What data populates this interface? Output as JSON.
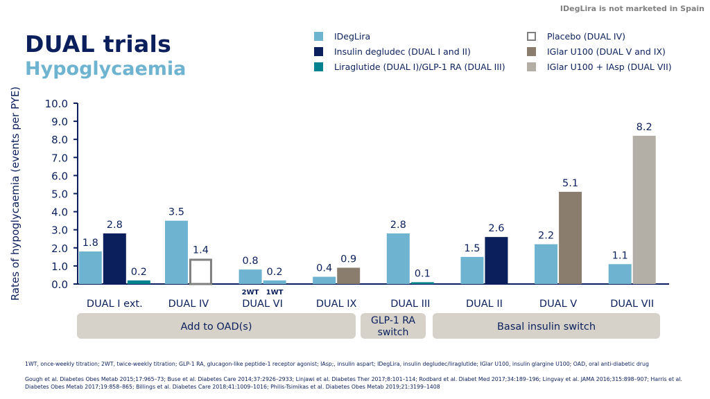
{
  "header": {
    "notice": "IDegLira is not marketed in Spain",
    "title": "DUAL trials",
    "subtitle": "Hypoglycaemia"
  },
  "colors": {
    "ideglira": "#6eb3cf",
    "degludec": "#0a1f5c",
    "liraglutide": "#00838f",
    "placebo": "#ffffff",
    "placebo_border": "#7f7f7f",
    "iglar": "#8b7d6e",
    "iglar_iasp": "#b3aea6",
    "group_bg": "#d6d1c9",
    "text": "#0a1f5c"
  },
  "legend": [
    {
      "label": "IDegLira",
      "color": "#6eb3cf"
    },
    {
      "label": "Insulin degludec (DUAL I and II)",
      "color": "#0a1f5c"
    },
    {
      "label": "Liraglutide (DUAL I)/GLP-1 RA (DUAL III)",
      "color": "#00838f"
    },
    {
      "label": "Placebo (DUAL IV)",
      "color": "#ffffff",
      "border": "#7f7f7f"
    },
    {
      "label": "IGlar U100 (DUAL V and IX)",
      "color": "#8b7d6e"
    },
    {
      "label": "IGlar U100 + IAsp (DUAL VII)",
      "color": "#b3aea6"
    }
  ],
  "chart_data": {
    "type": "bar",
    "ylabel": "Rates of hypoglycaemia (events per PYE)",
    "ylim": [
      0,
      10
    ],
    "yticks": [
      "0.0",
      "1.0",
      "2.0",
      "3.0",
      "4.0",
      "5.0",
      "6.0",
      "7.0",
      "8.0",
      "9.0",
      "10.0"
    ],
    "categories": [
      {
        "name": "DUAL I ext.",
        "bars": [
          {
            "series": "IDegLira",
            "value": 1.8,
            "label": "1.8"
          },
          {
            "series": "Insulin degludec",
            "value": 2.8,
            "label": "2.8"
          },
          {
            "series": "Liraglutide",
            "value": 0.2,
            "label": "0.2"
          }
        ]
      },
      {
        "name": "DUAL IV",
        "bars": [
          {
            "series": "IDegLira",
            "value": 3.5,
            "label": "3.5"
          },
          {
            "series": "Placebo",
            "value": 1.4,
            "label": "1.4"
          }
        ]
      },
      {
        "name": "DUAL VI",
        "bars": [
          {
            "series": "IDegLira 2WT",
            "value": 0.8,
            "label": "0.8",
            "note": "2WT"
          },
          {
            "series": "IDegLira 1WT",
            "value": 0.2,
            "label": "0.2",
            "note": "1WT"
          }
        ]
      },
      {
        "name": "DUAL IX",
        "bars": [
          {
            "series": "IDegLira",
            "value": 0.4,
            "label": "0.4"
          },
          {
            "series": "IGlar U100",
            "value": 0.9,
            "label": "0.9"
          }
        ]
      },
      {
        "name": "DUAL III",
        "bars": [
          {
            "series": "IDegLira",
            "value": 2.8,
            "label": "2.8"
          },
          {
            "series": "GLP-1 RA",
            "value": 0.1,
            "label": "0.1"
          }
        ]
      },
      {
        "name": "DUAL II",
        "bars": [
          {
            "series": "IDegLira",
            "value": 1.5,
            "label": "1.5"
          },
          {
            "series": "Insulin degludec",
            "value": 2.6,
            "label": "2.6"
          }
        ]
      },
      {
        "name": "DUAL V",
        "bars": [
          {
            "series": "IDegLira",
            "value": 2.2,
            "label": "2.2"
          },
          {
            "series": "IGlar U100",
            "value": 5.1,
            "label": "5.1"
          }
        ]
      },
      {
        "name": "DUAL VII",
        "bars": [
          {
            "series": "IDegLira",
            "value": 1.1,
            "label": "1.1"
          },
          {
            "series": "IGlar U100 + IAsp",
            "value": 8.2,
            "label": "8.2"
          }
        ]
      }
    ],
    "groups": [
      {
        "label": "Add to OAD(s)",
        "categories": [
          "DUAL I ext.",
          "DUAL IV",
          "DUAL VI",
          "DUAL IX"
        ]
      },
      {
        "label": "GLP-1 RA switch",
        "categories": [
          "DUAL III"
        ]
      },
      {
        "label": "Basal insulin switch",
        "categories": [
          "DUAL II",
          "DUAL V",
          "DUAL VII"
        ]
      }
    ]
  },
  "footnotes": {
    "abbreviations": "1WT, once-weekly titration; 2WT, twice-weekly titration; GLP-1 RA, glucagon-like peptide-1 receptor agonist; IAsp;, insulin aspart; IDegLira, insulin degludec/liraglutide; IGlar U100, insulin glargine U100; OAD, oral anti-diabetic drug",
    "references": "Gough et al. Diabetes Obes Metab 2015;17:965–73; Buse et al. Diabetes Care 2014;37:2926–2933; Linjawi et al. Diabetes Ther 2017;8:101–114; Rodbard et al. Diabet Med 2017;34:189–196; Lingvay et al. JAMA 2016;315:898–907; Harris et al. Diabetes Obes Metab 2017;19:858–865; Billings et al. Diabetes Care 2018;41:1009–1016; Philis-Tsimikas et al. Diabetes Obes Metab 2019;21:3199–1408"
  }
}
